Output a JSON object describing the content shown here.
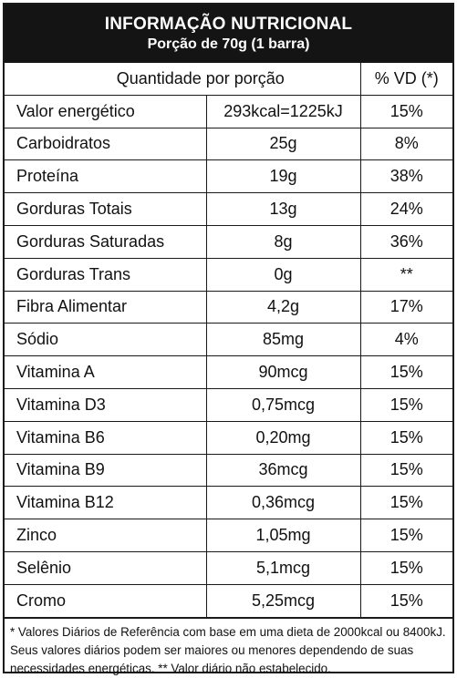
{
  "header": {
    "title": "INFORMAÇÃO NUTRICIONAL",
    "subtitle": "Porção de 70g (1 barra)"
  },
  "columns": {
    "quantity": "Quantidade por porção",
    "vd": "% VD (*)"
  },
  "rows": [
    {
      "name": "Valor energético",
      "amount": "293kcal=1225kJ",
      "vd": "15%"
    },
    {
      "name": "Carboidratos",
      "amount": "25g",
      "vd": "8%"
    },
    {
      "name": "Proteína",
      "amount": "19g",
      "vd": "38%"
    },
    {
      "name": "Gorduras Totais",
      "amount": "13g",
      "vd": "24%"
    },
    {
      "name": "Gorduras Saturadas",
      "amount": "8g",
      "vd": "36%"
    },
    {
      "name": "Gorduras Trans",
      "amount": "0g",
      "vd": "**"
    },
    {
      "name": "Fibra Alimentar",
      "amount": "4,2g",
      "vd": "17%"
    },
    {
      "name": "Sódio",
      "amount": "85mg",
      "vd": "4%"
    },
    {
      "name": "Vitamina A",
      "amount": "90mcg",
      "vd": "15%"
    },
    {
      "name": "Vitamina D3",
      "amount": "0,75mcg",
      "vd": "15%"
    },
    {
      "name": "Vitamina B6",
      "amount": "0,20mg",
      "vd": "15%"
    },
    {
      "name": "Vitamina B9",
      "amount": "36mcg",
      "vd": "15%"
    },
    {
      "name": "Vitamina B12",
      "amount": "0,36mcg",
      "vd": "15%"
    },
    {
      "name": "Zinco",
      "amount": "1,05mg",
      "vd": "15%"
    },
    {
      "name": "Selênio",
      "amount": "5,1mcg",
      "vd": "15%"
    },
    {
      "name": "Cromo",
      "amount": "5,25mcg",
      "vd": "15%"
    }
  ],
  "footnote": "* Valores Diários de Referência com base em uma dieta de 2000kcal ou 8400kJ. Seus valores diários podem ser maiores ou menores dependendo de suas necessidades energéticas. ** Valor diário não estabelecido."
}
